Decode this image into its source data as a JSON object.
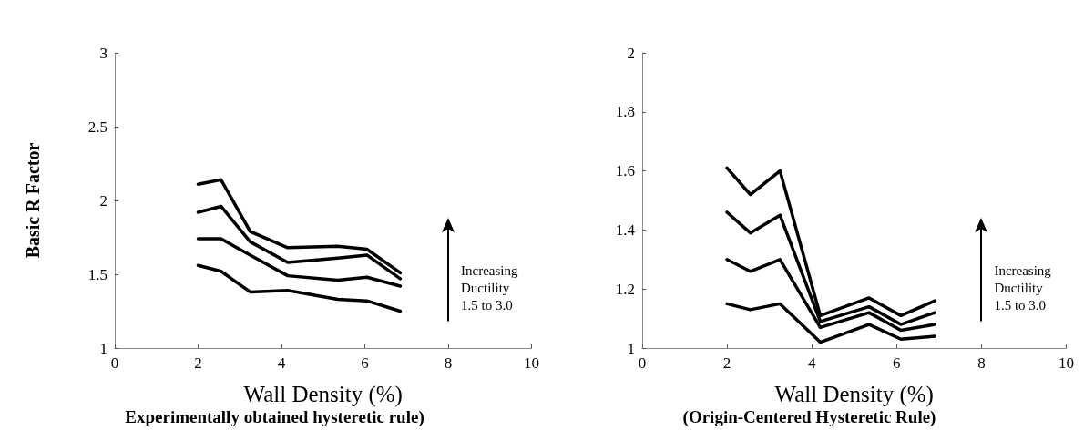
{
  "chart_data": [
    {
      "type": "line",
      "title": "Experimentally obtained hysteretic rule)",
      "xlabel": "Wall Density (%)",
      "ylabel": "Basic R Factor",
      "annotations": [
        "Increasing\nDuctility\n1.5 to 3.0"
      ],
      "x": [
        2,
        2.55,
        3.25,
        4.15,
        5.35,
        6.05,
        6.85
      ],
      "series": [
        {
          "color": "#000000",
          "values": [
            2.11,
            2.14,
            1.79,
            1.68,
            1.69,
            1.67,
            1.51
          ]
        },
        {
          "color": "#000000",
          "values": [
            1.92,
            1.96,
            1.72,
            1.58,
            1.61,
            1.63,
            1.47
          ]
        },
        {
          "color": "#000000",
          "values": [
            1.74,
            1.74,
            1.63,
            1.49,
            1.46,
            1.48,
            1.42
          ]
        },
        {
          "color": "#000000",
          "values": [
            1.56,
            1.52,
            1.38,
            1.39,
            1.33,
            1.32,
            1.25
          ]
        }
      ],
      "xlim": [
        0,
        10
      ],
      "xticks": [
        0,
        2,
        4,
        6,
        8,
        10
      ],
      "ylim": [
        1,
        3
      ],
      "yticks": [
        1,
        1.5,
        2,
        2.5,
        3
      ],
      "grid": false,
      "marker": "none",
      "line_style": "solid"
    },
    {
      "type": "line",
      "title": "(Origin-Centered Hysteretic Rule)",
      "xlabel": "Wall Density (%)",
      "annotations": [
        "Increasing\nDuctility\n1.5 to 3.0"
      ],
      "x": [
        2,
        2.55,
        3.25,
        4.2,
        5.35,
        6.1,
        6.9
      ],
      "series": [
        {
          "color": "#000000",
          "values": [
            1.61,
            1.52,
            1.6,
            1.11,
            1.17,
            1.11,
            1.16
          ]
        },
        {
          "color": "#000000",
          "values": [
            1.46,
            1.39,
            1.45,
            1.09,
            1.14,
            1.08,
            1.12
          ]
        },
        {
          "color": "#000000",
          "values": [
            1.3,
            1.26,
            1.3,
            1.07,
            1.12,
            1.06,
            1.08
          ]
        },
        {
          "color": "#000000",
          "values": [
            1.15,
            1.13,
            1.15,
            1.02,
            1.08,
            1.03,
            1.04
          ]
        }
      ],
      "xlim": [
        0,
        10
      ],
      "xticks": [
        0,
        2,
        4,
        6,
        8,
        10
      ],
      "ylim": [
        1,
        2
      ],
      "yticks": [
        1,
        1.2,
        1.4,
        1.6,
        1.8,
        2
      ],
      "grid": false,
      "marker": "none",
      "line_style": "solid"
    }
  ]
}
